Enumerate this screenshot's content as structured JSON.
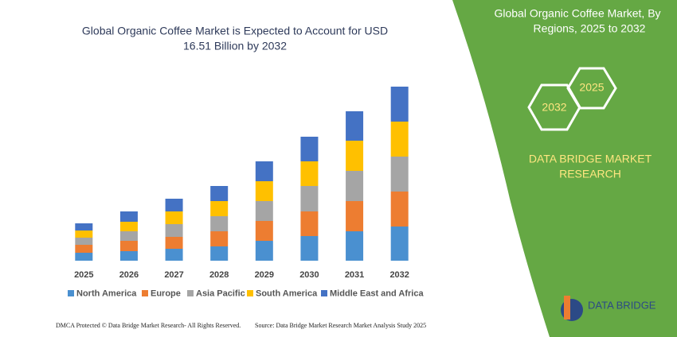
{
  "chart_data": {
    "type": "stacked-bar",
    "title": [
      "Global Organic Coffee Market is Expected to Account for USD",
      "16.51 Billion by 2032"
    ],
    "categories": [
      "2025",
      "2026",
      "2027",
      "2028",
      "2029",
      "2030",
      "2031",
      "2032"
    ],
    "series": [
      {
        "name": "North America",
        "color": "#4a90d0",
        "values": [
          10,
          12,
          15,
          18,
          25,
          31,
          37,
          43
        ]
      },
      {
        "name": "Europe",
        "color": "#ed7d31",
        "values": [
          10,
          13,
          15,
          19,
          25,
          31,
          38,
          44
        ]
      },
      {
        "name": "Asia Pacific",
        "color": "#a5a5a5",
        "values": [
          9,
          12,
          16,
          19,
          25,
          32,
          38,
          44
        ]
      },
      {
        "name": "South America",
        "color": "#ffc000",
        "values": [
          9,
          12,
          16,
          19,
          25,
          31,
          38,
          44
        ]
      },
      {
        "name": "Middle East and Africa",
        "color": "#4472c4",
        "values": [
          9,
          13,
          16,
          19,
          25,
          31,
          37,
          44
        ]
      }
    ]
  },
  "panel": {
    "title": [
      "Global Organic Coffee Market, By",
      "Regions, 2025 to 2032"
    ],
    "hex_left": "2032",
    "hex_right": "2025",
    "brand": [
      "DATA BRIDGE MARKET",
      "RESEARCH"
    ]
  },
  "footer": {
    "notice": "DMCA Protected © Data Bridge Market Research- All Rights Reserved.",
    "source": "Source: Data Bridge Market Research  Market Analysis Study 2025",
    "logo": "DATA BRIDGE"
  }
}
